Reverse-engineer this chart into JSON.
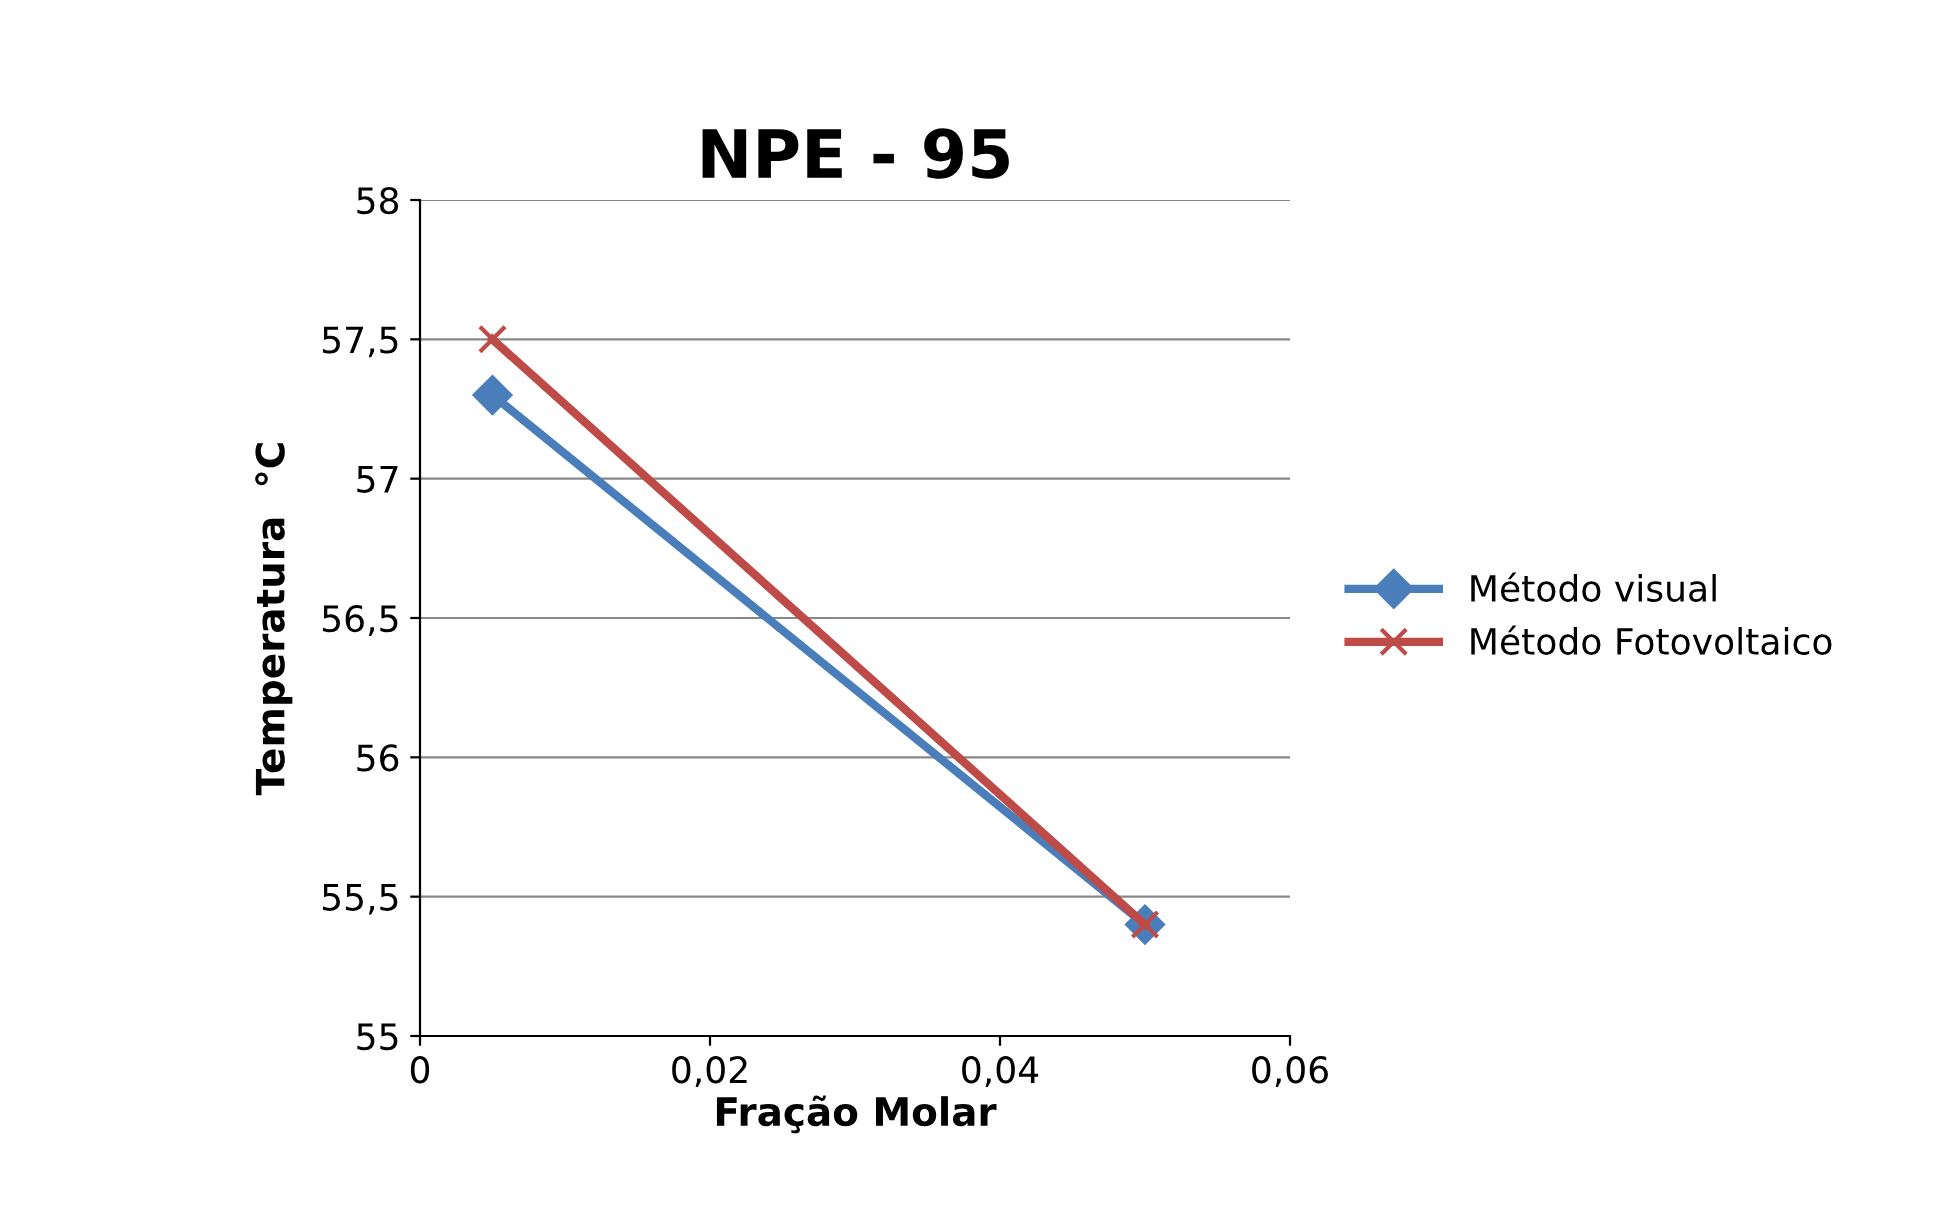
{
  "chart_data": {
    "type": "line",
    "title": "NPE - 95",
    "xlabel": "Fração Molar",
    "ylabel": "Temperatura  °C",
    "xlim": [
      0,
      0.06
    ],
    "xticks": [
      {
        "value": 0,
        "label": "0"
      },
      {
        "value": 0.02,
        "label": "0,02"
      },
      {
        "value": 0.04,
        "label": "0,04"
      },
      {
        "value": 0.06,
        "label": "0,06"
      }
    ],
    "ylim": [
      55,
      58
    ],
    "yticks": [
      55,
      {
        "value": 55.5,
        "label": "55,5"
      },
      56,
      {
        "value": 56.5,
        "label": "56,5"
      },
      57,
      {
        "value": 57.5,
        "label": "57,5"
      },
      58
    ],
    "grid": "y",
    "legend": "right",
    "x": [
      0.005,
      0.05
    ],
    "series": [
      {
        "name": "Método visual",
        "color": "#4a7ebb",
        "marker": "diamond",
        "values": [
          57.3,
          55.4
        ]
      },
      {
        "name": "Método Fotovoltaico",
        "color": "#be4b48",
        "marker": "cross",
        "values": [
          57.5,
          55.4
        ]
      }
    ]
  }
}
